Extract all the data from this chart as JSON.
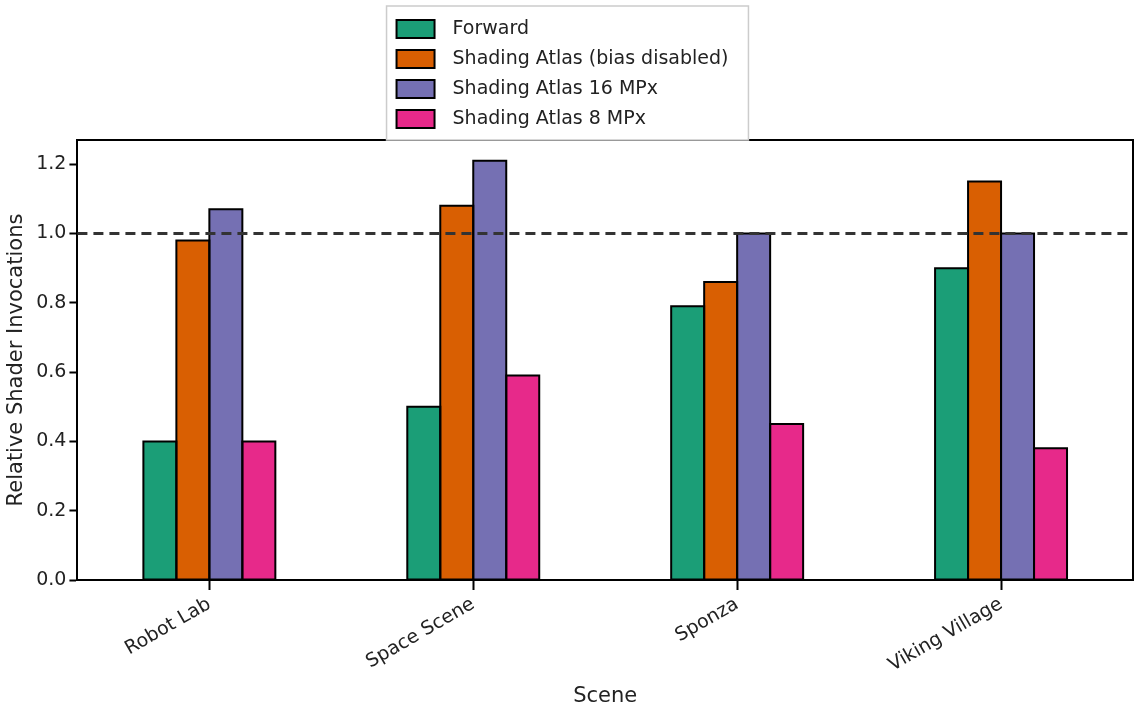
{
  "chart_data": {
    "type": "bar",
    "xlabel": "Scene",
    "ylabel": "Relative Shader Invocations",
    "categories": [
      "Robot Lab",
      "Space Scene",
      "Sponza",
      "Viking Village"
    ],
    "series": [
      {
        "name": "Forward",
        "color": "#1b9e77",
        "values": [
          0.4,
          0.5,
          0.79,
          0.9
        ]
      },
      {
        "name": "Shading Atlas (bias disabled)",
        "color": "#d95f02",
        "values": [
          0.98,
          1.08,
          0.86,
          1.15
        ]
      },
      {
        "name": "Shading Atlas 16 MPx",
        "color": "#7570b3",
        "values": [
          1.07,
          1.21,
          1.0,
          1.0
        ]
      },
      {
        "name": "Shading Atlas 8 MPx",
        "color": "#e7298a",
        "values": [
          0.4,
          0.59,
          0.45,
          0.38
        ]
      }
    ],
    "ylim": [
      0,
      1.27
    ],
    "yticks": [
      {
        "value": 0,
        "label": "0.0"
      },
      {
        "value": 0.2,
        "label": "0.2"
      },
      {
        "value": 0.4,
        "label": "0.4"
      },
      {
        "value": 0.6,
        "label": "0.6"
      },
      {
        "value": 0.8,
        "label": "0.8"
      },
      {
        "value": 1,
        "label": "1.0"
      },
      {
        "value": 1.2,
        "label": "1.2"
      }
    ],
    "ref_lines": [
      {
        "axis": "y",
        "value": 1.0,
        "color": "#333333",
        "line_style": "dashed"
      }
    ],
    "grid": false,
    "legend": "top"
  }
}
